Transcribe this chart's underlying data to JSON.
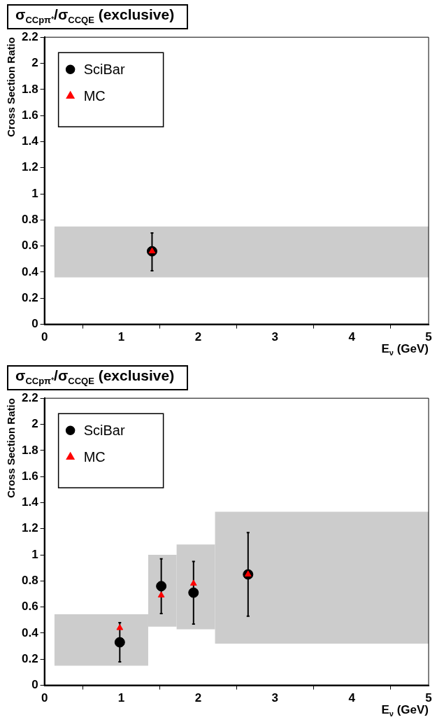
{
  "chart_data": [
    {
      "type": "scatter",
      "title": "σ$_{CCpπ⁺}$/σ$_{CCQE}$ (exclusive)",
      "xlabel": "E$_{ν}$ (GeV)",
      "ylabel": "Cross Section Ratio",
      "xlim": [
        0,
        5
      ],
      "ylim": [
        0,
        2.2
      ],
      "xticks": [
        0,
        1,
        2,
        3,
        4,
        5
      ],
      "yticks": [
        0,
        0.2,
        0.4,
        0.6,
        0.8,
        1,
        1.2,
        1.4,
        1.6,
        1.8,
        2,
        2.2
      ],
      "legend": "top left",
      "grid": false,
      "series": [
        {
          "type": "histogram",
          "color": "#cccccc",
          "bins": [
            0.13,
            5
          ],
          "base": [
            0.36
          ],
          "values": [
            0.39
          ]
        },
        {
          "name": "SciBar",
          "color": "#000000",
          "marker": "circle",
          "x": [
            1.4
          ],
          "values": [
            0.56
          ],
          "errors": [
            [
              0.41,
              0.7
            ]
          ]
        },
        {
          "name": "MC",
          "color": "#ff0000",
          "marker": "triangle",
          "x": [
            1.4
          ],
          "values": [
            0.56
          ]
        }
      ]
    },
    {
      "type": "scatter",
      "title": "σ$_{CCpπ⁺}$/σ$_{CCQE}$ (exclusive)",
      "xlabel": "E$_{ν}$ (GeV)",
      "ylabel": "Cross Section Ratio",
      "xlim": [
        0,
        5
      ],
      "ylim": [
        0,
        2.2
      ],
      "xticks": [
        0,
        1,
        2,
        3,
        4,
        5
      ],
      "yticks": [
        0,
        0.2,
        0.4,
        0.6,
        0.8,
        1,
        1.2,
        1.4,
        1.6,
        1.8,
        2,
        2.2
      ],
      "legend": "top left",
      "grid": false,
      "series": [
        {
          "type": "histogram",
          "color": "#cccccc",
          "bins": [
            0.13,
            1.35,
            1.72,
            2.22,
            5
          ],
          "base": [
            0.15,
            0.45,
            0.43,
            0.32
          ],
          "values": [
            0.395,
            0.55,
            0.65,
            1.01
          ]
        },
        {
          "name": "SciBar",
          "color": "#000000",
          "marker": "circle",
          "x": [
            0.98,
            1.52,
            1.94,
            2.65
          ],
          "values": [
            0.33,
            0.76,
            0.71,
            0.85
          ],
          "errors": [
            [
              0.18,
              0.48
            ],
            [
              0.55,
              0.97
            ],
            [
              0.47,
              0.95
            ],
            [
              0.53,
              1.17
            ]
          ]
        },
        {
          "name": "MC",
          "color": "#ff0000",
          "marker": "triangle",
          "x": [
            0.98,
            1.52,
            1.94,
            2.65
          ],
          "values": [
            0.44,
            0.69,
            0.78,
            0.85
          ]
        }
      ]
    }
  ]
}
